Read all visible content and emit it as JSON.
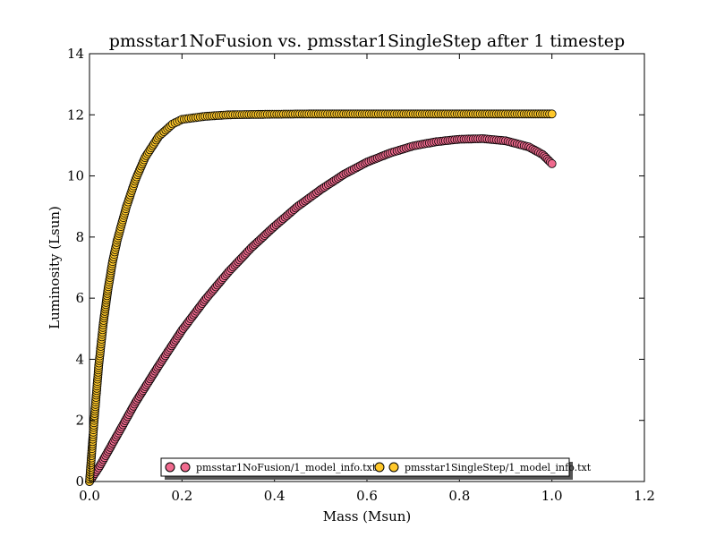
{
  "chart_data": {
    "type": "scatter",
    "title": "pmsstar1NoFusion vs. pmsstar1SingleStep after 1 timestep",
    "xlabel": "Mass (Msun)",
    "ylabel": "Luminosity (Lsun)",
    "xlim": [
      0.0,
      1.2
    ],
    "ylim": [
      0,
      14
    ],
    "xticks": [
      "0.0",
      "0.2",
      "0.4",
      "0.6",
      "0.8",
      "1.0",
      "1.2"
    ],
    "yticks": [
      "0",
      "2",
      "4",
      "6",
      "8",
      "10",
      "12",
      "14"
    ],
    "grid": false,
    "legend_position": "bottom-center",
    "series": [
      {
        "name": "pmsstar1NoFusion/1_model_info.txt",
        "color": "#f06a8e",
        "x": [
          0.0,
          0.02,
          0.05,
          0.1,
          0.15,
          0.2,
          0.25,
          0.3,
          0.35,
          0.4,
          0.45,
          0.5,
          0.55,
          0.6,
          0.65,
          0.7,
          0.75,
          0.8,
          0.85,
          0.9,
          0.95,
          0.98,
          1.0
        ],
        "y": [
          0.0,
          0.45,
          1.25,
          2.6,
          3.8,
          4.95,
          5.95,
          6.85,
          7.65,
          8.35,
          9.0,
          9.55,
          10.05,
          10.45,
          10.75,
          10.98,
          11.12,
          11.2,
          11.22,
          11.15,
          10.95,
          10.7,
          10.4
        ]
      },
      {
        "name": "pmsstar1SingleStep/1_model_info.txt",
        "color": "#ffc82a",
        "x": [
          0.0,
          0.005,
          0.01,
          0.02,
          0.03,
          0.04,
          0.05,
          0.06,
          0.08,
          0.1,
          0.12,
          0.15,
          0.18,
          0.2,
          0.25,
          0.3,
          0.4,
          0.5,
          0.6,
          0.8,
          1.0
        ],
        "y": [
          0.0,
          1.0,
          2.0,
          3.8,
          5.2,
          6.3,
          7.2,
          7.9,
          9.0,
          9.9,
          10.6,
          11.3,
          11.7,
          11.85,
          11.95,
          12.0,
          12.02,
          12.03,
          12.03,
          12.03,
          12.03
        ]
      }
    ]
  }
}
